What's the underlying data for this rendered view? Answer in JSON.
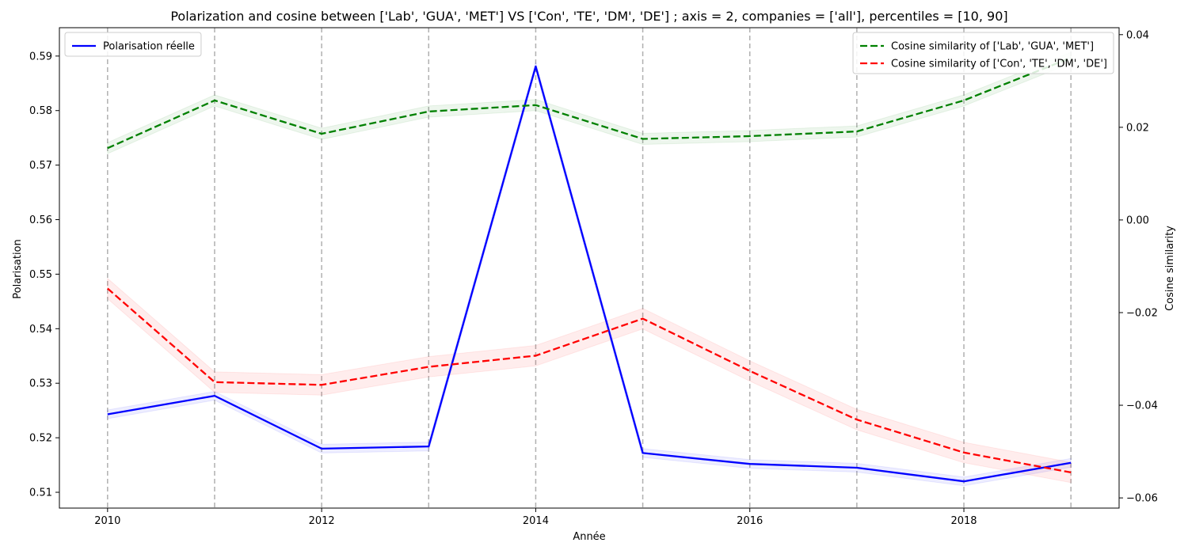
{
  "chart_data": {
    "type": "line",
    "title": "Polarization and cosine between ['Lab', 'GUA', 'MET'] VS ['Con', 'TE', 'DM', 'DE'] ; axis = 2, companies = ['all'], percentiles = [10, 90]",
    "xlabel": "Année",
    "ylabel_left": "Polarisation",
    "ylabel_right": "Cosine similarity",
    "x": [
      2010,
      2011,
      2012,
      2013,
      2014,
      2015,
      2016,
      2017,
      2018,
      2019
    ],
    "xlim": [
      2009.55,
      2019.45
    ],
    "x_ticks": [
      "2010",
      "2012",
      "2014",
      "2016",
      "2018"
    ],
    "ylim_left": [
      0.5071,
      0.5952
    ],
    "y_ticks_left": [
      "0.51",
      "0.52",
      "0.53",
      "0.54",
      "0.55",
      "0.56",
      "0.57",
      "0.58",
      "0.59"
    ],
    "ylim_right": [
      -0.0622,
      0.0415
    ],
    "y_ticks_right": [
      "−0.06",
      "−0.04",
      "−0.02",
      "0.00",
      "0.02",
      "0.04"
    ],
    "vertical_gridlines_at": [
      2010,
      2011,
      2012,
      2013,
      2014,
      2015,
      2016,
      2017,
      2018,
      2019
    ],
    "grid": "vertical dashed",
    "series": [
      {
        "name": "Polarisation réelle",
        "axis": "left",
        "color": "#0000ff",
        "style": "solid",
        "values": [
          0.5243,
          0.5277,
          0.518,
          0.5184,
          0.5881,
          0.5172,
          0.5152,
          0.5145,
          0.512,
          0.5154
        ],
        "band_half_width": 0.0008
      },
      {
        "name": "Cosine similarity of ['Lab', 'GUA', 'MET']",
        "axis": "right",
        "color": "#008000",
        "style": "dashed",
        "values": [
          0.0155,
          0.0258,
          0.0186,
          0.0234,
          0.0248,
          0.0175,
          0.0181,
          0.0191,
          0.0258,
          0.035
        ],
        "band_half_width": 0.0012
      },
      {
        "name": "Cosine similarity of ['Con', 'TE', 'DM', 'DE']",
        "axis": "right",
        "color": "#ff0000",
        "style": "dashed",
        "values": [
          -0.0148,
          -0.035,
          -0.0356,
          -0.0317,
          -0.0293,
          -0.0213,
          -0.0326,
          -0.0431,
          -0.0502,
          -0.0545
        ],
        "band_half_width": 0.0022
      }
    ],
    "legends": [
      {
        "placement": "top-left",
        "entries": [
          "Polarisation réelle"
        ]
      },
      {
        "placement": "top-right",
        "entries": [
          "Cosine similarity of ['Lab', 'GUA', 'MET']",
          "Cosine similarity of ['Con', 'TE', 'DM', 'DE']"
        ]
      }
    ]
  }
}
